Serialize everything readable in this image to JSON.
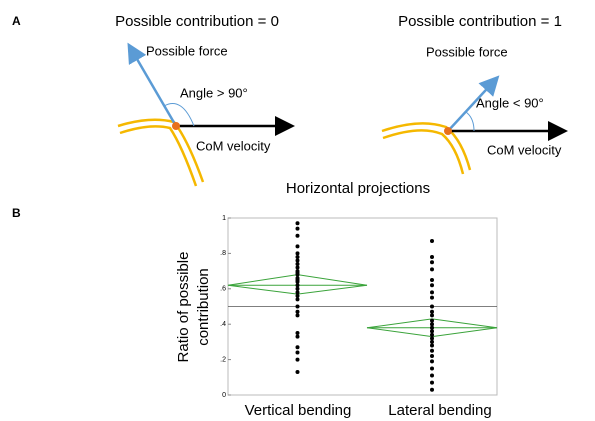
{
  "panel_a": {
    "label": "A",
    "left": {
      "title": "Possible contribution = 0",
      "force": "Possible force",
      "angle": "Angle > 90°",
      "velocity": "CoM velocity"
    },
    "right": {
      "title": "Possible contribution = 1",
      "force": "Possible force",
      "angle": "Angle < 90°",
      "velocity": "CoM velocity"
    }
  },
  "panel_b": {
    "label": "B"
  },
  "chart_data": {
    "type": "diamond",
    "title": "Horizontal projections",
    "ylabel": [
      "Ratio of possible",
      "contribution"
    ],
    "categories": [
      "Vertical bending",
      "Lateral bending"
    ],
    "points": [
      [
        0.97,
        0.94,
        0.9,
        0.84,
        0.8,
        0.78,
        0.76,
        0.74,
        0.72,
        0.7,
        0.69,
        0.68,
        0.66,
        0.65,
        0.64,
        0.62,
        0.6,
        0.58,
        0.56,
        0.54,
        0.5,
        0.47,
        0.45,
        0.35,
        0.33,
        0.27,
        0.24,
        0.2,
        0.13
      ],
      [
        0.87,
        0.78,
        0.75,
        0.71,
        0.65,
        0.62,
        0.58,
        0.55,
        0.5,
        0.47,
        0.45,
        0.42,
        0.4,
        0.38,
        0.36,
        0.34,
        0.32,
        0.3,
        0.28,
        0.25,
        0.22,
        0.19,
        0.15,
        0.11,
        0.07,
        0.03
      ]
    ],
    "means": [
      0.62,
      0.38
    ],
    "ci_lower": [
      0.57,
      0.33
    ],
    "ci_upper": [
      0.68,
      0.43
    ],
    "reference_line": 0.5,
    "diamond_color": "#3aa33a",
    "point_color": "#000000",
    "ylim": [
      0,
      1
    ],
    "yticks": [
      0,
      {
        "value": 0.2,
        "label": ".2"
      },
      {
        "value": 0.4,
        "label": ".4"
      },
      {
        "value": 0.6,
        "label": ".6"
      },
      {
        "value": 0.8,
        "label": ".8"
      },
      1
    ]
  }
}
